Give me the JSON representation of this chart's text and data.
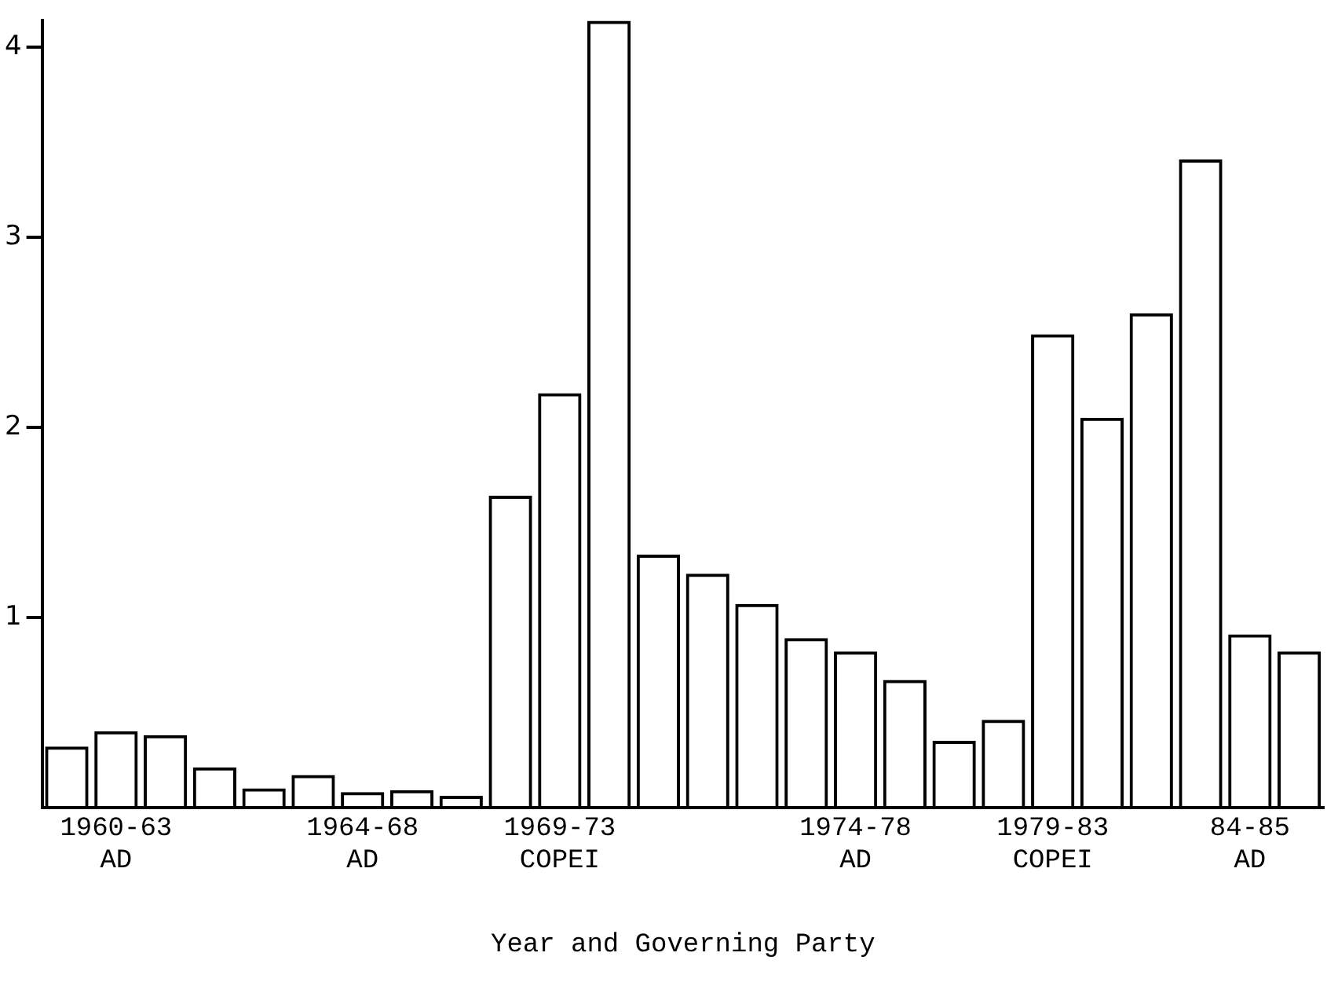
{
  "chart_data": {
    "type": "bar",
    "xlabel": "Year and Governing Party",
    "categories": [
      null,
      "1960-63\nAD",
      null,
      null,
      null,
      null,
      "1964-68\nAD",
      null,
      null,
      null,
      "1969-73\nCOPEI",
      null,
      null,
      null,
      null,
      null,
      "1974-78\nAD",
      null,
      null,
      null,
      "1979-83\nCOPEI",
      null,
      null,
      null,
      "84-85\nAD",
      null
    ],
    "values": [
      0.32,
      0.4,
      0.38,
      0.21,
      0.1,
      0.17,
      0.08,
      0.09,
      0.06,
      1.64,
      2.18,
      4.14,
      1.33,
      1.23,
      1.07,
      0.89,
      0.82,
      0.67,
      0.35,
      0.46,
      2.49,
      2.05,
      2.6,
      3.41,
      0.91,
      0.82
    ],
    "color": "#000000",
    "ylim": [
      0,
      4.14
    ],
    "yticks": [
      1,
      2,
      3,
      4
    ]
  }
}
